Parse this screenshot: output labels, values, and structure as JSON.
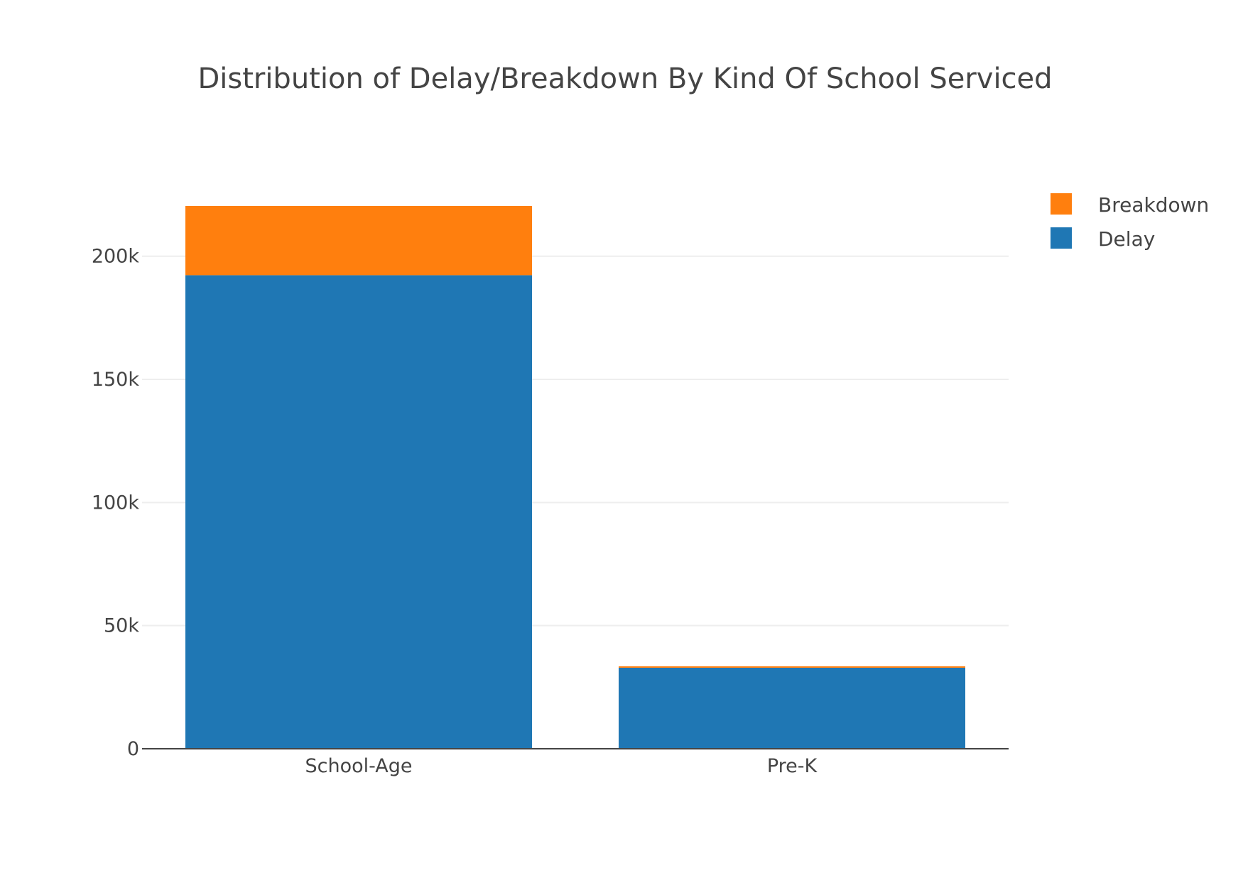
{
  "chart_data": {
    "type": "bar",
    "barmode": "stack",
    "title": "Distribution of Delay/Breakdown By Kind Of School Serviced",
    "xlabel": "",
    "ylabel": "",
    "categories": [
      "School-Age",
      "Pre-K"
    ],
    "series": [
      {
        "name": "Delay",
        "color": "#1f77b4",
        "values": [
          192300,
          32900
        ]
      },
      {
        "name": "Breakdown",
        "color": "#ff7f0e",
        "values": [
          28100,
          600
        ]
      }
    ],
    "ylim": [
      0,
      220400
    ],
    "yticks": [
      0,
      50000,
      100000,
      150000,
      200000
    ],
    "ytick_labels": [
      "0",
      "50k",
      "100k",
      "150k",
      "200k"
    ],
    "grid": true,
    "legend": {
      "placement": "top-right",
      "entries": [
        "Breakdown",
        "Delay"
      ]
    }
  }
}
